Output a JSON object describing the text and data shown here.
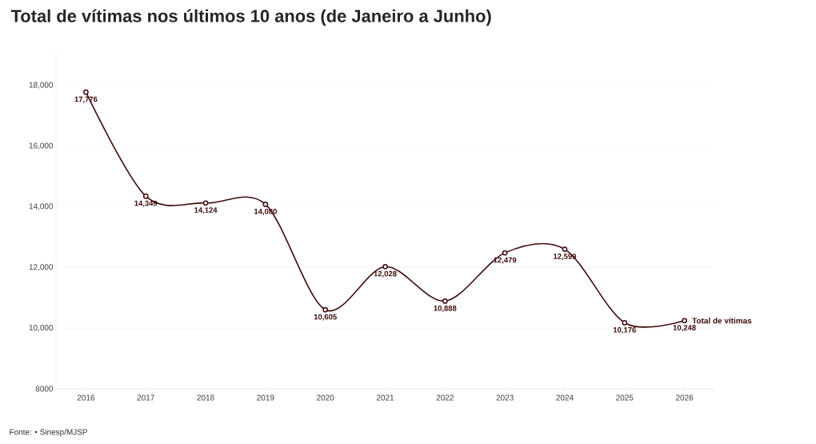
{
  "chart_data": {
    "type": "line",
    "title": "Total de vítimas nos últimos 10 anos (de Janeiro a Junho)",
    "categories": [
      "2016",
      "2017",
      "2018",
      "2019",
      "2020",
      "2021",
      "2022",
      "2023",
      "2024",
      "2025",
      "2026"
    ],
    "series": [
      {
        "name": "Total de vítimas",
        "color": "#3d0c0c",
        "values": [
          17776,
          14349,
          14124,
          14080,
          10605,
          12028,
          10888,
          12479,
          12599,
          10176,
          10248
        ],
        "value_labels": [
          "17,776",
          "14,349",
          "14,124",
          "14,080",
          "10,605",
          "12,028",
          "10,888",
          "12,479",
          "12,599",
          "10,176",
          "10,248"
        ]
      }
    ],
    "ylim": [
      8000,
      19100
    ],
    "yticks": [
      8000,
      {
        "value": 10000,
        "label": "10,000"
      },
      {
        "value": 12000,
        "label": "12,000"
      },
      {
        "value": 14000,
        "label": "14,000"
      },
      {
        "value": 16000,
        "label": "16,000"
      },
      {
        "value": 18000,
        "label": "18,000"
      }
    ],
    "grid": "y",
    "marker": "circle",
    "line_style": "solid",
    "annotations": [
      "Fonte: • Sinesp/MJSP"
    ]
  }
}
